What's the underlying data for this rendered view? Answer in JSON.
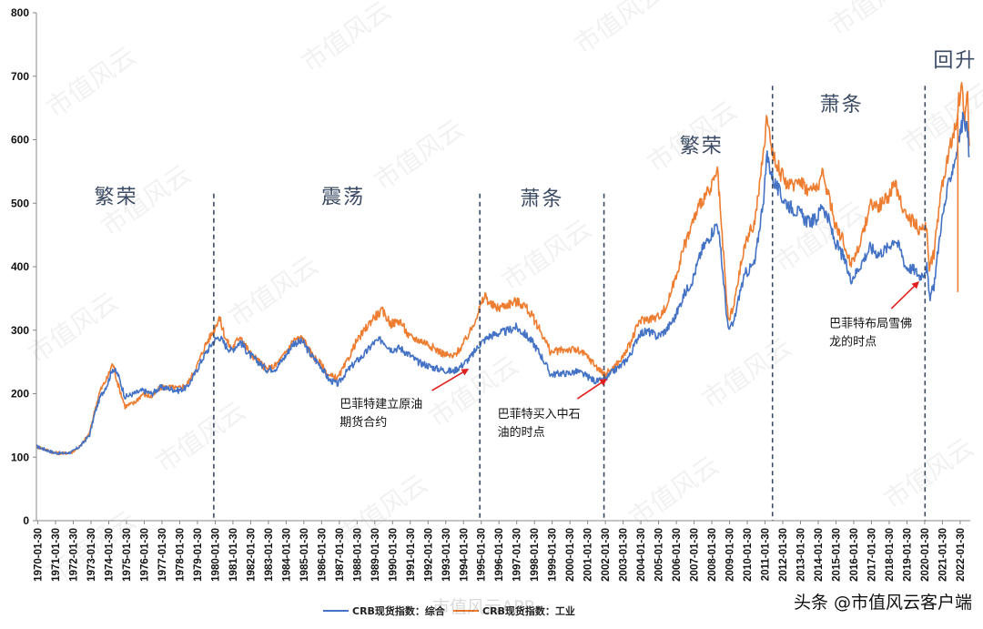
{
  "chart_data": {
    "type": "line",
    "title": "",
    "xlabel": "",
    "ylabel": "",
    "ylim": [
      0,
      800
    ],
    "y_ticks": [
      "0",
      "100",
      "200",
      "300",
      "400",
      "500",
      "600",
      "700",
      "800"
    ],
    "x_ticks": [
      "1970-01-30",
      "1971-01-30",
      "1972-01-30",
      "1973-01-30",
      "1974-01-30",
      "1975-01-30",
      "1976-01-30",
      "1977-01-30",
      "1978-01-30",
      "1979-01-30",
      "1980-01-30",
      "1981-01-30",
      "1982-01-30",
      "1983-01-30",
      "1984-01-30",
      "1985-01-30",
      "1986-01-30",
      "1987-01-30",
      "1988-01-30",
      "1989-01-30",
      "1990-01-30",
      "1991-01-30",
      "1992-01-30",
      "1993-01-30",
      "1994-01-30",
      "1995-01-30",
      "1996-01-30",
      "1997-01-30",
      "1998-01-30",
      "1999-01-30",
      "2000-01-30",
      "2001-01-30",
      "2002-01-30",
      "2003-01-30",
      "2004-01-30",
      "2005-01-30",
      "2006-01-30",
      "2007-01-30",
      "2008-01-30",
      "2009-01-30",
      "2010-01-30",
      "2011-01-30",
      "2012-01-30",
      "2013-01-30",
      "2014-01-30",
      "2015-01-30",
      "2016-01-30",
      "2017-01-30",
      "2018-01-30",
      "2019-01-30",
      "2020-01-30",
      "2021-01-30",
      "2022-01-30"
    ],
    "grid": false,
    "legend": "bottom",
    "series": [
      {
        "name": "CRB现货指数：综合",
        "color": "#4472c4",
        "points": [
          [
            1970.0,
            117
          ],
          [
            1970.5,
            112
          ],
          [
            1971.0,
            107
          ],
          [
            1971.5,
            106
          ],
          [
            1972.0,
            108
          ],
          [
            1972.5,
            118
          ],
          [
            1973.0,
            135
          ],
          [
            1973.3,
            170
          ],
          [
            1973.6,
            195
          ],
          [
            1974.0,
            215
          ],
          [
            1974.3,
            240
          ],
          [
            1974.6,
            230
          ],
          [
            1975.0,
            195
          ],
          [
            1975.5,
            200
          ],
          [
            1976.0,
            205
          ],
          [
            1976.5,
            200
          ],
          [
            1977.0,
            210
          ],
          [
            1977.5,
            208
          ],
          [
            1978.0,
            205
          ],
          [
            1978.5,
            210
          ],
          [
            1979.0,
            235
          ],
          [
            1979.5,
            262
          ],
          [
            1980.0,
            283
          ],
          [
            1980.3,
            290
          ],
          [
            1980.7,
            275
          ],
          [
            1981.0,
            268
          ],
          [
            1981.5,
            282
          ],
          [
            1982.0,
            262
          ],
          [
            1982.5,
            250
          ],
          [
            1983.0,
            238
          ],
          [
            1983.5,
            240
          ],
          [
            1984.0,
            258
          ],
          [
            1984.5,
            280
          ],
          [
            1985.0,
            282
          ],
          [
            1985.5,
            260
          ],
          [
            1986.0,
            245
          ],
          [
            1986.5,
            222
          ],
          [
            1987.0,
            215
          ],
          [
            1987.5,
            235
          ],
          [
            1988.0,
            250
          ],
          [
            1988.5,
            262
          ],
          [
            1989.0,
            280
          ],
          [
            1989.5,
            285
          ],
          [
            1990.0,
            270
          ],
          [
            1990.5,
            272
          ],
          [
            1991.0,
            262
          ],
          [
            1991.5,
            250
          ],
          [
            1992.0,
            245
          ],
          [
            1992.5,
            240
          ],
          [
            1993.0,
            237
          ],
          [
            1993.5,
            235
          ],
          [
            1994.0,
            245
          ],
          [
            1994.5,
            258
          ],
          [
            1995.0,
            278
          ],
          [
            1995.5,
            290
          ],
          [
            1996.0,
            295
          ],
          [
            1996.5,
            298
          ],
          [
            1997.0,
            305
          ],
          [
            1997.5,
            295
          ],
          [
            1998.0,
            280
          ],
          [
            1998.5,
            258
          ],
          [
            1999.0,
            230
          ],
          [
            1999.5,
            232
          ],
          [
            2000.0,
            232
          ],
          [
            2000.5,
            235
          ],
          [
            2001.0,
            228
          ],
          [
            2001.5,
            220
          ],
          [
            2002.0,
            220
          ],
          [
            2002.5,
            235
          ],
          [
            2003.0,
            245
          ],
          [
            2003.5,
            262
          ],
          [
            2004.0,
            295
          ],
          [
            2004.5,
            298
          ],
          [
            2005.0,
            290
          ],
          [
            2005.5,
            300
          ],
          [
            2006.0,
            320
          ],
          [
            2006.5,
            355
          ],
          [
            2007.0,
            380
          ],
          [
            2007.5,
            425
          ],
          [
            2008.0,
            450
          ],
          [
            2008.4,
            470
          ],
          [
            2008.7,
            390
          ],
          [
            2009.0,
            300
          ],
          [
            2009.3,
            310
          ],
          [
            2009.7,
            365
          ],
          [
            2010.0,
            390
          ],
          [
            2010.5,
            405
          ],
          [
            2011.0,
            510
          ],
          [
            2011.2,
            575
          ],
          [
            2011.5,
            540
          ],
          [
            2012.0,
            510
          ],
          [
            2012.5,
            495
          ],
          [
            2013.0,
            485
          ],
          [
            2013.5,
            470
          ],
          [
            2014.0,
            475
          ],
          [
            2014.3,
            500
          ],
          [
            2014.7,
            470
          ],
          [
            2015.0,
            440
          ],
          [
            2015.5,
            415
          ],
          [
            2015.9,
            380
          ],
          [
            2016.2,
            390
          ],
          [
            2016.6,
            410
          ],
          [
            2017.0,
            430
          ],
          [
            2017.5,
            420
          ],
          [
            2018.0,
            430
          ],
          [
            2018.4,
            445
          ],
          [
            2018.8,
            420
          ],
          [
            2019.0,
            400
          ],
          [
            2019.5,
            395
          ],
          [
            2019.8,
            385
          ],
          [
            2020.0,
            390
          ],
          [
            2020.2,
            400
          ],
          [
            2020.35,
            350
          ],
          [
            2020.6,
            370
          ],
          [
            2021.0,
            465
          ],
          [
            2021.5,
            540
          ],
          [
            2021.8,
            570
          ],
          [
            2022.0,
            600
          ],
          [
            2022.3,
            640
          ],
          [
            2022.5,
            610
          ],
          [
            2022.6,
            575
          ]
        ]
      },
      {
        "name": "CRB现货指数：工业",
        "color": "#ed7d31",
        "points": [
          [
            1970.0,
            117
          ],
          [
            1970.5,
            112
          ],
          [
            1971.0,
            107
          ],
          [
            1971.5,
            106
          ],
          [
            1972.0,
            108
          ],
          [
            1972.5,
            118
          ],
          [
            1973.0,
            138
          ],
          [
            1973.3,
            175
          ],
          [
            1973.6,
            205
          ],
          [
            1974.0,
            225
          ],
          [
            1974.3,
            248
          ],
          [
            1974.6,
            215
          ],
          [
            1975.0,
            180
          ],
          [
            1975.5,
            185
          ],
          [
            1976.0,
            200
          ],
          [
            1976.5,
            195
          ],
          [
            1977.0,
            210
          ],
          [
            1977.5,
            210
          ],
          [
            1978.0,
            208
          ],
          [
            1978.5,
            215
          ],
          [
            1979.0,
            240
          ],
          [
            1979.5,
            275
          ],
          [
            1980.0,
            300
          ],
          [
            1980.3,
            320
          ],
          [
            1980.7,
            285
          ],
          [
            1981.0,
            270
          ],
          [
            1981.5,
            292
          ],
          [
            1982.0,
            265
          ],
          [
            1982.5,
            252
          ],
          [
            1983.0,
            238
          ],
          [
            1983.5,
            245
          ],
          [
            1984.0,
            262
          ],
          [
            1984.5,
            285
          ],
          [
            1985.0,
            288
          ],
          [
            1985.5,
            262
          ],
          [
            1986.0,
            248
          ],
          [
            1986.5,
            228
          ],
          [
            1987.0,
            225
          ],
          [
            1987.5,
            250
          ],
          [
            1988.0,
            280
          ],
          [
            1988.5,
            300
          ],
          [
            1989.0,
            320
          ],
          [
            1989.5,
            330
          ],
          [
            1990.0,
            310
          ],
          [
            1990.5,
            315
          ],
          [
            1991.0,
            290
          ],
          [
            1991.5,
            285
          ],
          [
            1992.0,
            280
          ],
          [
            1992.5,
            270
          ],
          [
            1993.0,
            262
          ],
          [
            1993.5,
            258
          ],
          [
            1994.0,
            275
          ],
          [
            1994.5,
            300
          ],
          [
            1995.0,
            335
          ],
          [
            1995.3,
            355
          ],
          [
            1995.6,
            340
          ],
          [
            1996.0,
            335
          ],
          [
            1996.5,
            340
          ],
          [
            1997.0,
            345
          ],
          [
            1997.5,
            340
          ],
          [
            1998.0,
            320
          ],
          [
            1998.5,
            295
          ],
          [
            1999.0,
            265
          ],
          [
            1999.5,
            268
          ],
          [
            2000.0,
            270
          ],
          [
            2000.5,
            268
          ],
          [
            2001.0,
            260
          ],
          [
            2001.5,
            245
          ],
          [
            2002.0,
            230
          ],
          [
            2002.5,
            240
          ],
          [
            2003.0,
            255
          ],
          [
            2003.5,
            280
          ],
          [
            2004.0,
            315
          ],
          [
            2004.5,
            318
          ],
          [
            2005.0,
            320
          ],
          [
            2005.5,
            335
          ],
          [
            2006.0,
            380
          ],
          [
            2006.5,
            430
          ],
          [
            2007.0,
            470
          ],
          [
            2007.5,
            505
          ],
          [
            2008.0,
            520
          ],
          [
            2008.4,
            550
          ],
          [
            2008.7,
            430
          ],
          [
            2009.0,
            315
          ],
          [
            2009.3,
            335
          ],
          [
            2009.7,
            400
          ],
          [
            2010.0,
            440
          ],
          [
            2010.5,
            470
          ],
          [
            2011.0,
            580
          ],
          [
            2011.2,
            640
          ],
          [
            2011.5,
            580
          ],
          [
            2012.0,
            545
          ],
          [
            2012.5,
            525
          ],
          [
            2013.0,
            540
          ],
          [
            2013.5,
            520
          ],
          [
            2014.0,
            525
          ],
          [
            2014.3,
            545
          ],
          [
            2014.7,
            510
          ],
          [
            2015.0,
            470
          ],
          [
            2015.5,
            440
          ],
          [
            2015.9,
            405
          ],
          [
            2016.2,
            420
          ],
          [
            2016.6,
            450
          ],
          [
            2017.0,
            500
          ],
          [
            2017.5,
            495
          ],
          [
            2018.0,
            510
          ],
          [
            2018.4,
            530
          ],
          [
            2018.8,
            500
          ],
          [
            2019.0,
            480
          ],
          [
            2019.5,
            470
          ],
          [
            2019.8,
            455
          ],
          [
            2020.0,
            460
          ],
          [
            2020.2,
            465
          ],
          [
            2020.35,
            400
          ],
          [
            2020.6,
            420
          ],
          [
            2021.0,
            520
          ],
          [
            2021.5,
            590
          ],
          [
            2021.8,
            620
          ],
          [
            2022.0,
            660
          ],
          [
            2022.2,
            690
          ],
          [
            2022.3,
            630
          ],
          [
            2022.5,
            670
          ],
          [
            2022.6,
            590
          ]
        ]
      }
    ],
    "spikes": [
      {
        "series": "CRB现货指数：工业",
        "x": 2021.95,
        "from": 360,
        "to": 640
      }
    ],
    "dividers": [
      1980.0,
      1995.0,
      2002.0,
      2011.5,
      2020.1
    ],
    "phases": [
      {
        "label": "繁荣",
        "x": 1974.5,
        "y": 500
      },
      {
        "label": "震荡",
        "x": 1987.3,
        "y": 500
      },
      {
        "label": "萧条",
        "x": 1998.5,
        "y": 497
      },
      {
        "label": "繁荣",
        "x": 2007.5,
        "y": 580
      },
      {
        "label": "萧条",
        "x": 2015.4,
        "y": 645
      },
      {
        "label": "回升",
        "x": 2021.8,
        "y": 715
      }
    ],
    "annotations": [
      {
        "lines": [
          "巴菲特建立原油",
          "期货合约"
        ],
        "text_x": 1987.1,
        "text_y": 178,
        "arrow_from": [
          1992.3,
          205
        ],
        "arrow_to": [
          1994.3,
          238
        ]
      },
      {
        "lines": [
          "巴菲特买入中石",
          "油的时点"
        ],
        "text_x": 1996.0,
        "text_y": 162,
        "arrow_from": [
          2000.5,
          192
        ],
        "arrow_to": [
          2002.1,
          222
        ]
      },
      {
        "lines": [
          "巴菲特布局雪佛",
          "龙的时点"
        ],
        "text_x": 2014.7,
        "text_y": 305,
        "arrow_from": [
          2018.2,
          334
        ],
        "arrow_to": [
          2019.7,
          375
        ]
      }
    ]
  },
  "watermark": "市值风云",
  "footer": {
    "app_watermark": "市值风云APP",
    "source": "头条 @市值风云客户端"
  }
}
